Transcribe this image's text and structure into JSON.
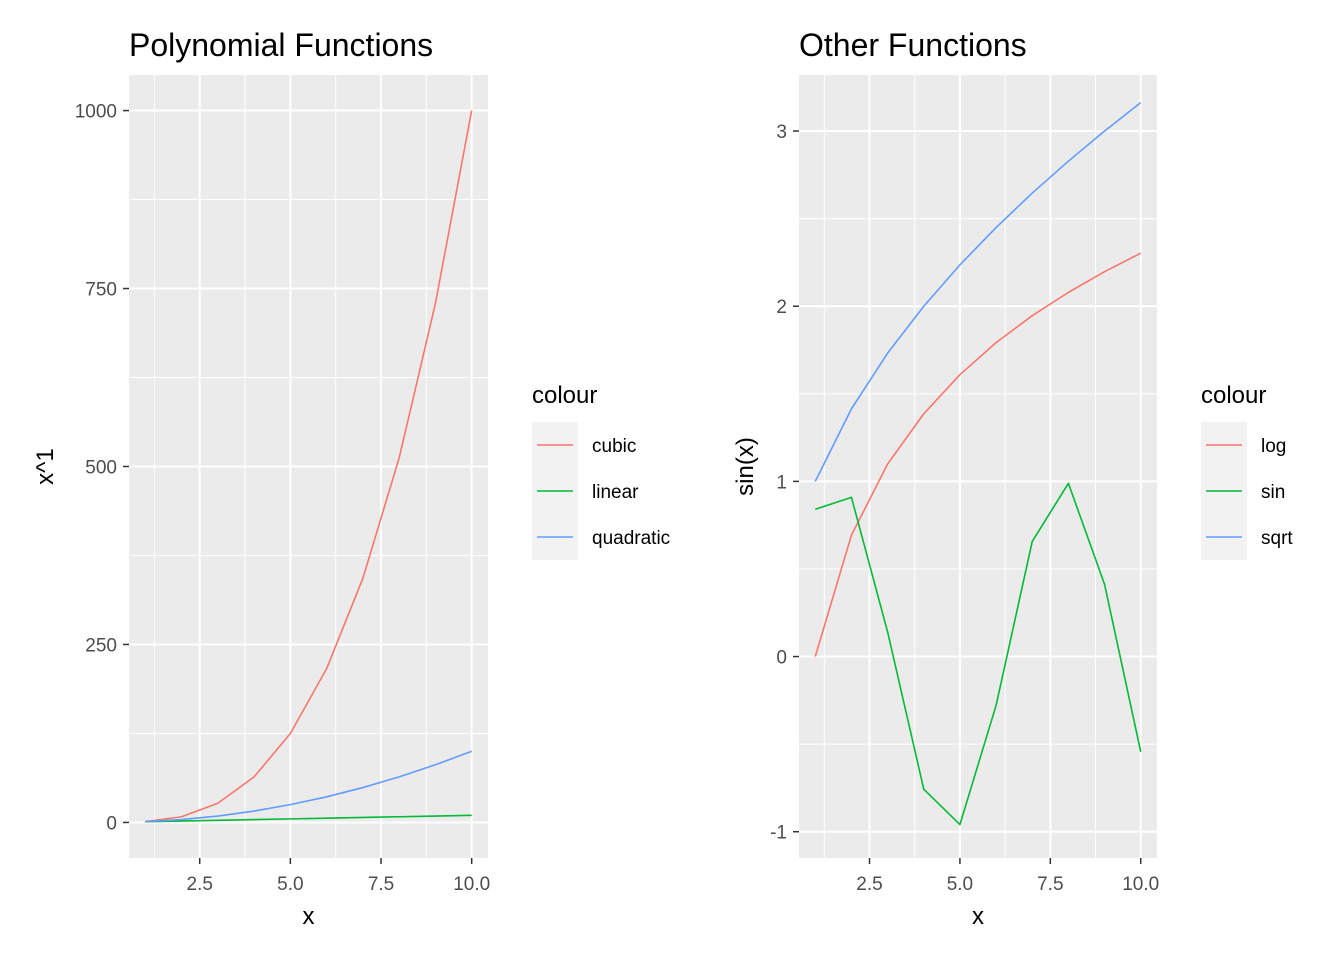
{
  "chart_data": [
    {
      "type": "line",
      "title": "Polynomial Functions",
      "xlabel": "x",
      "ylabel": "x^1",
      "xlim": [
        0.55,
        10.45
      ],
      "ylim": [
        -49.95,
        1049.95
      ],
      "xticks": [
        2.5,
        5.0,
        7.5,
        10.0
      ],
      "xtick_labels": [
        "2.5",
        "5.0",
        "7.5",
        "10.0"
      ],
      "yticks": [
        0,
        250,
        500,
        750,
        1000
      ],
      "ytick_labels": [
        "0",
        "250",
        "500",
        "750",
        "1000"
      ],
      "grid": true,
      "legend": {
        "title": "colour",
        "position": "right"
      },
      "x": [
        1,
        2,
        3,
        4,
        5,
        6,
        7,
        8,
        9,
        10
      ],
      "series": [
        {
          "name": "cubic",
          "color": "#F8766D",
          "values": [
            1,
            8,
            27,
            64,
            125,
            216,
            343,
            512,
            729,
            1000
          ]
        },
        {
          "name": "linear",
          "color": "#00BA38",
          "values": [
            1,
            2,
            3,
            4,
            5,
            6,
            7,
            8,
            9,
            10
          ]
        },
        {
          "name": "quadratic",
          "color": "#619CFF",
          "values": [
            1,
            4,
            9,
            16,
            25,
            36,
            49,
            64,
            81,
            100
          ]
        }
      ]
    },
    {
      "type": "line",
      "title": "Other Functions",
      "xlabel": "x",
      "ylabel": "sin(x)",
      "xlim": [
        0.55,
        10.45
      ],
      "ylim": [
        -1.15,
        3.32
      ],
      "xticks": [
        2.5,
        5.0,
        7.5,
        10.0
      ],
      "xtick_labels": [
        "2.5",
        "5.0",
        "7.5",
        "10.0"
      ],
      "yticks": [
        -1,
        0,
        1,
        2,
        3
      ],
      "ytick_labels": [
        "-1",
        "0",
        "1",
        "2",
        "3"
      ],
      "grid": true,
      "legend": {
        "title": "colour",
        "position": "right"
      },
      "x": [
        1,
        2,
        3,
        4,
        5,
        6,
        7,
        8,
        9,
        10
      ],
      "series": [
        {
          "name": "log",
          "color": "#F8766D",
          "values": [
            0.0,
            0.693,
            1.099,
            1.386,
            1.609,
            1.792,
            1.946,
            2.079,
            2.197,
            2.303
          ]
        },
        {
          "name": "sin",
          "color": "#00BA38",
          "values": [
            0.841,
            0.909,
            0.141,
            -0.757,
            -0.959,
            -0.279,
            0.657,
            0.989,
            0.412,
            -0.544
          ]
        },
        {
          "name": "sqrt",
          "color": "#619CFF",
          "values": [
            1.0,
            1.414,
            1.732,
            2.0,
            2.236,
            2.449,
            2.646,
            2.828,
            3.0,
            3.162
          ]
        }
      ]
    }
  ]
}
